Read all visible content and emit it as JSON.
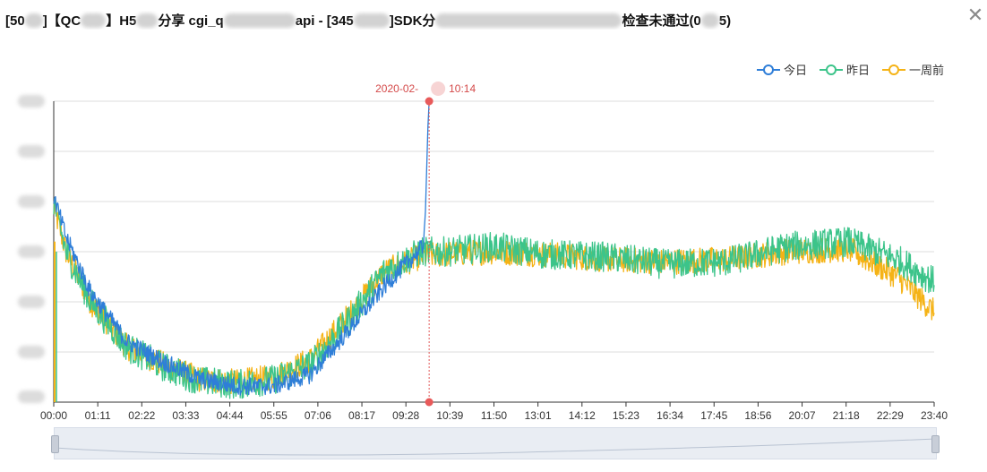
{
  "title": {
    "segments": [
      "[50",
      "]【QC",
      "】H5",
      "分享 cgi_q",
      "api - [345",
      "]SDK分",
      "检查未通过(0",
      "5)"
    ]
  },
  "legend": [
    {
      "label": "今日",
      "color": "#2f7ed8"
    },
    {
      "label": "昨日",
      "color": "#3cc48a"
    },
    {
      "label": "一周前",
      "color": "#f5b316"
    }
  ],
  "chart_data": {
    "type": "line",
    "x_ticks": [
      "00:00",
      "01:11",
      "02:22",
      "03:33",
      "04:44",
      "05:55",
      "07:06",
      "08:17",
      "09:28",
      "10:39",
      "11:50",
      "13:01",
      "14:12",
      "15:23",
      "16:34",
      "17:45",
      "18:56",
      "20:07",
      "21:18",
      "22:29",
      "23:40"
    ],
    "x_start_min": 0,
    "x_end_min": 1440,
    "ylim": [
      0,
      6
    ],
    "grid": true,
    "legend_position": "top-right",
    "markers": [
      {
        "label": "2020-02-",
        "label_suffix": "10:14",
        "x_min": 614
      }
    ],
    "series": [
      {
        "name": "今日",
        "color": "#2f7ed8",
        "end_min": 614,
        "profile": [
          [
            0,
            4.1
          ],
          [
            20,
            3.3
          ],
          [
            60,
            2.2
          ],
          [
            120,
            1.2
          ],
          [
            180,
            0.8
          ],
          [
            240,
            0.45
          ],
          [
            300,
            0.32
          ],
          [
            360,
            0.32
          ],
          [
            420,
            0.55
          ],
          [
            480,
            1.4
          ],
          [
            540,
            2.3
          ],
          [
            580,
            2.8
          ],
          [
            604,
            3.1
          ],
          [
            608,
            3.8
          ],
          [
            612,
            5.5
          ],
          [
            614,
            6.0
          ]
        ],
        "noise": 0.18
      },
      {
        "name": "昨日",
        "color": "#3cc48a",
        "end_min": 1440,
        "profile": [
          [
            0,
            4.0
          ],
          [
            20,
            3.0
          ],
          [
            60,
            2.0
          ],
          [
            120,
            1.1
          ],
          [
            180,
            0.7
          ],
          [
            240,
            0.42
          ],
          [
            300,
            0.35
          ],
          [
            360,
            0.45
          ],
          [
            420,
            0.75
          ],
          [
            480,
            1.6
          ],
          [
            540,
            2.6
          ],
          [
            600,
            3.0
          ],
          [
            640,
            3.0
          ],
          [
            720,
            3.1
          ],
          [
            800,
            2.95
          ],
          [
            900,
            2.9
          ],
          [
            1000,
            2.75
          ],
          [
            1100,
            2.8
          ],
          [
            1200,
            3.1
          ],
          [
            1300,
            3.2
          ],
          [
            1380,
            2.85
          ],
          [
            1440,
            2.4
          ]
        ],
        "noise": 0.3
      },
      {
        "name": "一周前",
        "color": "#f5b316",
        "end_min": 1440,
        "profile": [
          [
            0,
            3.9
          ],
          [
            20,
            3.0
          ],
          [
            60,
            2.0
          ],
          [
            120,
            1.1
          ],
          [
            180,
            0.75
          ],
          [
            240,
            0.45
          ],
          [
            300,
            0.4
          ],
          [
            360,
            0.5
          ],
          [
            420,
            0.85
          ],
          [
            480,
            1.7
          ],
          [
            540,
            2.6
          ],
          [
            600,
            2.9
          ],
          [
            640,
            2.95
          ],
          [
            720,
            3.0
          ],
          [
            800,
            2.95
          ],
          [
            900,
            2.85
          ],
          [
            1000,
            2.8
          ],
          [
            1100,
            2.85
          ],
          [
            1200,
            3.0
          ],
          [
            1300,
            3.05
          ],
          [
            1380,
            2.5
          ],
          [
            1440,
            1.8
          ]
        ],
        "noise": 0.26
      }
    ]
  }
}
